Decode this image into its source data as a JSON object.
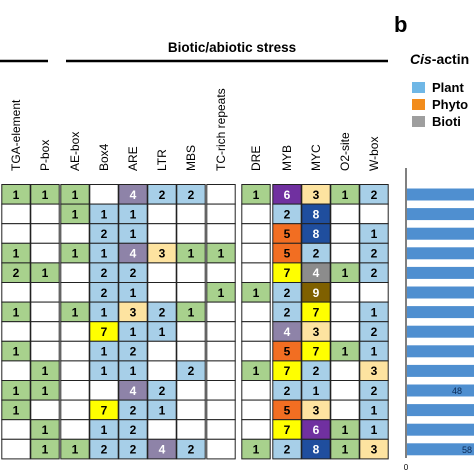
{
  "section_title": "Biotic/abiotic stress",
  "panel_letter": "b",
  "right_panel": {
    "title_italic": "Cis",
    "title_rest": "-actin",
    "legend": [
      {
        "label": "Plant",
        "color": "#6fb7e6"
      },
      {
        "label": "Phyto",
        "color": "#f28c1c"
      },
      {
        "label": "Bioti",
        "color": "#9e9e9e"
      }
    ],
    "bar_labels": [
      "48",
      "58"
    ],
    "axis_zero": "0"
  },
  "chart_data": {
    "type": "heatmap",
    "columns": [
      "TGA-element",
      "P-box",
      "AE-box",
      "Box4",
      "ARE",
      "LTR",
      "MBS",
      "TC-rich repeats",
      "DRE",
      "MYB",
      "MYC",
      "O2-site",
      "W-box"
    ],
    "rows": [
      [
        "1",
        "1",
        "1",
        "",
        "4",
        "2",
        "2",
        "",
        "1",
        "6",
        "3",
        "1",
        "2"
      ],
      [
        "",
        "",
        "1",
        "1",
        "1",
        "",
        "",
        "",
        "",
        "2",
        "8",
        "",
        ""
      ],
      [
        "",
        "",
        "",
        "2",
        "1",
        "",
        "",
        "",
        "",
        "5",
        "8",
        "",
        "1"
      ],
      [
        "1",
        "",
        "1",
        "1",
        "4",
        "3",
        "1",
        "1",
        "",
        "5",
        "2",
        "",
        "2"
      ],
      [
        "2",
        "1",
        "",
        "2",
        "2",
        "",
        "",
        "",
        "",
        "7",
        "4",
        "1",
        "2"
      ],
      [
        "",
        "",
        "",
        "2",
        "1",
        "",
        "",
        "1",
        "1",
        "2",
        "9",
        "",
        ""
      ],
      [
        "1",
        "",
        "1",
        "1",
        "3",
        "2",
        "1",
        "",
        "",
        "2",
        "7",
        "",
        "1"
      ],
      [
        "",
        "",
        "",
        "7",
        "1",
        "1",
        "",
        "",
        "",
        "4",
        "3",
        "",
        "2"
      ],
      [
        "1",
        "",
        "",
        "1",
        "2",
        "",
        "",
        "",
        "",
        "5",
        "7",
        "1",
        "1"
      ],
      [
        "",
        "1",
        "",
        "1",
        "1",
        "",
        "2",
        "",
        "1",
        "7",
        "2",
        "",
        "3"
      ],
      [
        "1",
        "1",
        "",
        "",
        "4",
        "2",
        "",
        "",
        "",
        "2",
        "1",
        "",
        "2"
      ],
      [
        "1",
        "",
        "",
        "7",
        "2",
        "1",
        "",
        "",
        "",
        "5",
        "3",
        "",
        "1"
      ],
      [
        "",
        "1",
        "",
        "1",
        "2",
        "",
        "",
        "",
        "",
        "7",
        "6",
        "1",
        "1"
      ],
      [
        "",
        "1",
        "1",
        "2",
        "2",
        "4",
        "2",
        "",
        "1",
        "2",
        "8",
        "1",
        "3"
      ]
    ],
    "color_rules": {
      "default": "#a7cfe8",
      "first_group": "#a8d18d",
      "ARE_4": "#8e83a8",
      "LTR_3": "#fde3a0",
      "LTR_4": "#8e83a8",
      "MYB": {
        "2": "#a7cfe8",
        "4": "#8e83a8",
        "5": "#f26e22",
        "6": "#7030a0",
        "7": "#ffff00"
      },
      "MYC": {
        "1": "#a7cfe8",
        "2": "#a7cfe8",
        "3": "#fde3a0",
        "4": "#8c8c8c",
        "6": "#7030a0",
        "7": "#ffff00",
        "8": "#1f4e9e",
        "9": "#7f6000"
      },
      "Box4_7": "#ffff00",
      "ARE_3": "#fde3a0",
      "W-box_3": "#fde3a0"
    }
  }
}
